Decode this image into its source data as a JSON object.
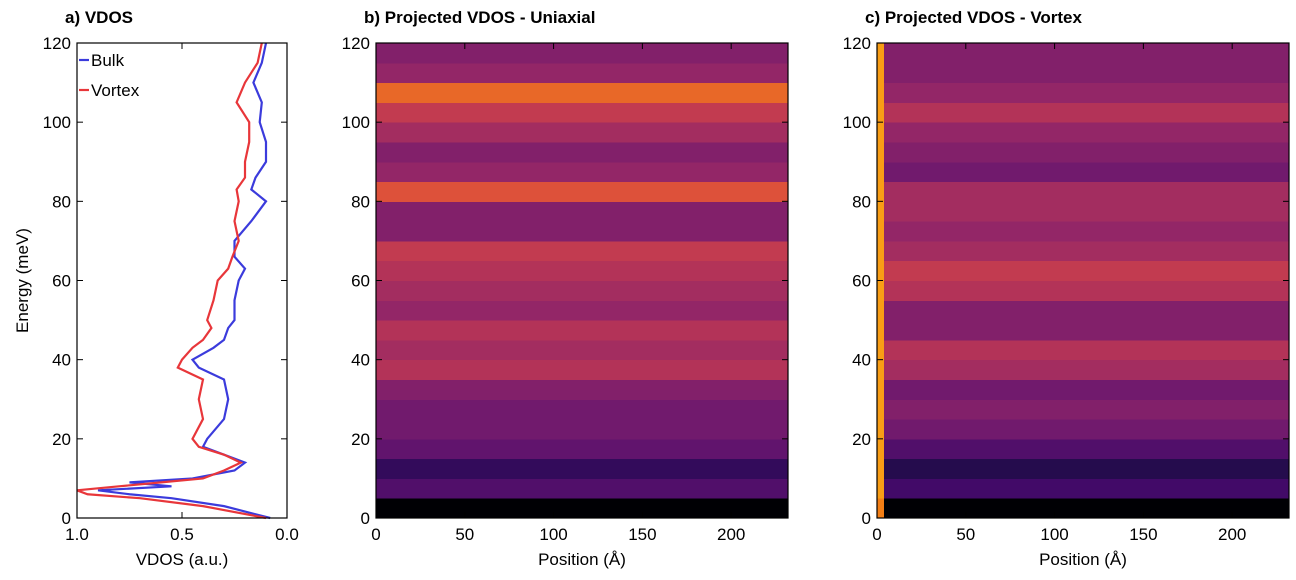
{
  "chart_data": [
    {
      "type": "line",
      "title": "a) VDOS",
      "xlabel": "VDOS (a.u.)",
      "ylabel": "Energy (meV)",
      "xlim": [
        1.0,
        0.0
      ],
      "xticks": [
        {
          "value": 1.0,
          "label": "1.0"
        },
        0.5,
        {
          "value": 0.0,
          "label": "0.0"
        }
      ],
      "ylim": [
        0,
        120
      ],
      "yticks": [
        0,
        20,
        40,
        60,
        80,
        100,
        120
      ],
      "legend": "upper left",
      "y": [
        0,
        3,
        5,
        6,
        7,
        8,
        9,
        10,
        12,
        14,
        16,
        18,
        20,
        25,
        30,
        35,
        38,
        40,
        43,
        45,
        48,
        50,
        55,
        60,
        63,
        66,
        70,
        75,
        80,
        83,
        86,
        90,
        95,
        100,
        105,
        110,
        115,
        120
      ],
      "series": [
        {
          "name": "Bulk",
          "color": "#3b3bdc",
          "values": [
            0.08,
            0.3,
            0.55,
            0.75,
            0.9,
            0.55,
            0.75,
            0.45,
            0.25,
            0.2,
            0.3,
            0.4,
            0.38,
            0.3,
            0.28,
            0.3,
            0.42,
            0.45,
            0.35,
            0.3,
            0.28,
            0.25,
            0.25,
            0.23,
            0.2,
            0.25,
            0.25,
            0.17,
            0.1,
            0.17,
            0.15,
            0.1,
            0.1,
            0.13,
            0.12,
            0.16,
            0.12,
            0.1
          ]
        },
        {
          "name": "Vortex",
          "color": "#e8363a",
          "values": [
            0.1,
            0.4,
            0.7,
            0.95,
            1.0,
            0.8,
            0.6,
            0.4,
            0.3,
            0.22,
            0.3,
            0.42,
            0.45,
            0.4,
            0.42,
            0.4,
            0.52,
            0.5,
            0.45,
            0.4,
            0.36,
            0.38,
            0.35,
            0.33,
            0.28,
            0.26,
            0.23,
            0.25,
            0.23,
            0.24,
            0.2,
            0.2,
            0.18,
            0.18,
            0.24,
            0.2,
            0.14,
            0.12
          ]
        }
      ]
    },
    {
      "type": "heatmap",
      "title": "b) Projected VDOS - Uniaxial",
      "xlabel": "Position (Å)",
      "xlim": [
        0,
        232
      ],
      "xticks": [
        0,
        50,
        100,
        150,
        200
      ],
      "ylim": [
        0,
        120
      ],
      "yticks": [
        0,
        20,
        40,
        60,
        80,
        100,
        120
      ],
      "zlim": [
        0,
        1
      ],
      "colormap": "inferno",
      "xbins": [
        0,
        232
      ],
      "ybins": [
        0,
        5,
        10,
        15,
        20,
        25,
        30,
        35,
        40,
        45,
        50,
        55,
        60,
        65,
        70,
        75,
        80,
        85,
        90,
        95,
        100,
        105,
        110,
        115,
        120
      ],
      "z": [
        [
          0
        ],
        [
          0.3
        ],
        [
          0.2
        ],
        [
          0.35
        ],
        [
          0.4
        ],
        [
          0.4
        ],
        [
          0.45
        ],
        [
          0.6
        ],
        [
          0.55
        ],
        [
          0.6
        ],
        [
          0.5
        ],
        [
          0.55
        ],
        [
          0.6
        ],
        [
          0.65
        ],
        [
          0.45
        ],
        [
          0.45
        ],
        [
          0.75
        ],
        [
          0.5
        ],
        [
          0.45
        ],
        [
          0.55
        ],
        [
          0.65
        ],
        [
          0.8
        ],
        [
          0.5
        ],
        [
          0.45
        ]
      ]
    },
    {
      "type": "heatmap",
      "title": "c) Projected VDOS - Vortex",
      "xlabel": "Position (Å)",
      "xlim": [
        0,
        232
      ],
      "xticks": [
        0,
        50,
        100,
        150,
        200
      ],
      "ylim": [
        0,
        120
      ],
      "yticks": [
        0,
        20,
        40,
        60,
        80,
        100,
        120
      ],
      "zlim": [
        0,
        1
      ],
      "colormap": "inferno",
      "xbins": [
        0,
        4,
        232
      ],
      "ybins": [
        0,
        5,
        10,
        15,
        20,
        25,
        30,
        35,
        40,
        45,
        50,
        55,
        60,
        65,
        70,
        75,
        80,
        85,
        90,
        95,
        100,
        105,
        110,
        115,
        120
      ],
      "z": [
        [
          0.85,
          0
        ],
        [
          0.9,
          0.25
        ],
        [
          0.9,
          0.15
        ],
        [
          0.9,
          0.3
        ],
        [
          0.9,
          0.4
        ],
        [
          0.9,
          0.45
        ],
        [
          0.9,
          0.4
        ],
        [
          0.9,
          0.55
        ],
        [
          0.9,
          0.6
        ],
        [
          0.9,
          0.45
        ],
        [
          0.9,
          0.45
        ],
        [
          0.9,
          0.6
        ],
        [
          0.9,
          0.65
        ],
        [
          0.9,
          0.55
        ],
        [
          0.9,
          0.5
        ],
        [
          0.9,
          0.55
        ],
        [
          0.9,
          0.55
        ],
        [
          0.9,
          0.4
        ],
        [
          0.9,
          0.45
        ],
        [
          0.9,
          0.5
        ],
        [
          0.9,
          0.6
        ],
        [
          0.9,
          0.5
        ],
        [
          0.9,
          0.45
        ],
        [
          0.9,
          0.45
        ]
      ]
    }
  ]
}
